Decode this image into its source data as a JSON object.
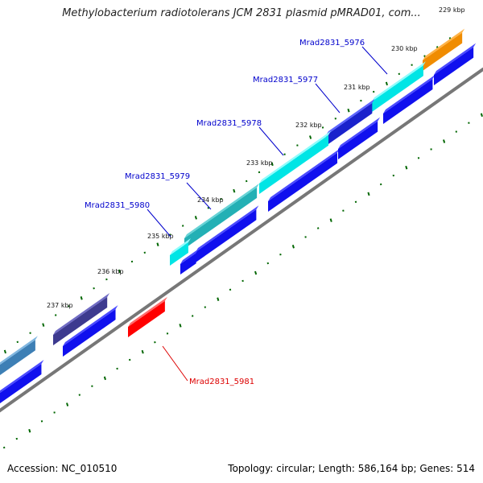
{
  "title": "Methylobacterium radiotolerans JCM 2831 plasmid pMRAD01, com...",
  "footer": {
    "accession": "Accession: NC_010510",
    "stats": "Topology: circular; Length: 586,164 bp; Genes: 514"
  },
  "ticks": [
    "229 kbp",
    "230 kbp",
    "231 kbp",
    "232 kbp",
    "233 kbp",
    "234 kbp",
    "235 kbp",
    "236 kbp",
    "237 kbp"
  ],
  "genes": [
    {
      "name": "Mrad2831_5976",
      "color": "#0000cc"
    },
    {
      "name": "Mrad2831_5977",
      "color": "#0000cc"
    },
    {
      "name": "Mrad2831_5978",
      "color": "#0000cc"
    },
    {
      "name": "Mrad2831_5979",
      "color": "#0000cc"
    },
    {
      "name": "Mrad2831_5980",
      "color": "#0000cc"
    },
    {
      "name": "Mrad2831_5981",
      "color": "#dd0000"
    }
  ],
  "colors": {
    "backbone": "#777777",
    "cds_forward": "#1010ee",
    "cog_cyan": "#00e5e5",
    "cog_teal": "#23b0b5",
    "cog_orange": "#f08c00",
    "cog_steel": "#3d7fb5",
    "cog_purple": "#3d3a8f",
    "cds_reverse": "#ff0000",
    "gc_dots": "#006600"
  }
}
